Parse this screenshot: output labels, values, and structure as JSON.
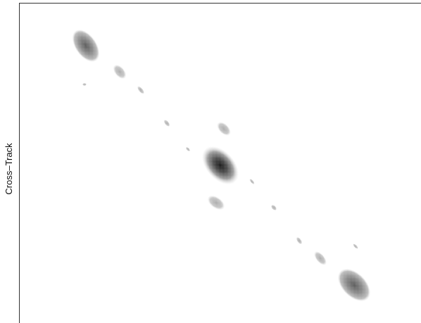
{
  "axis_label": "Cross–Track"
}
